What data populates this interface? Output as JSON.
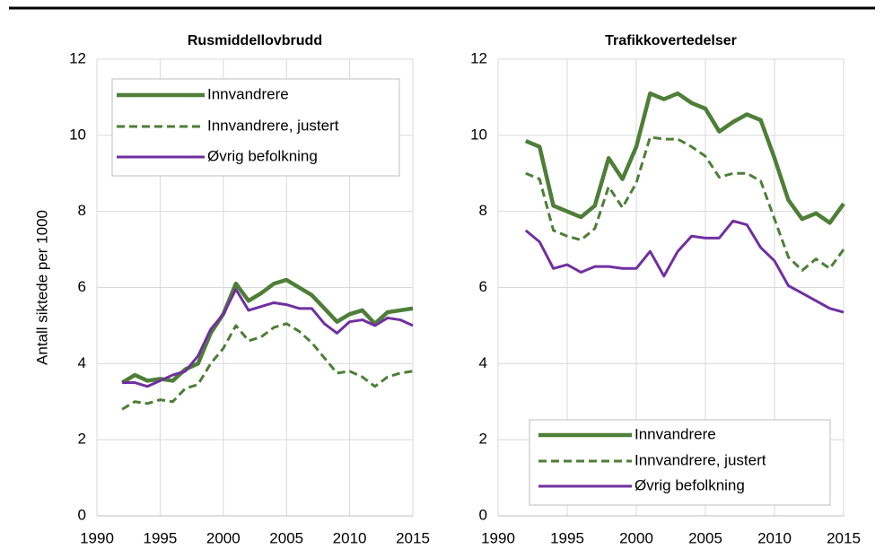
{
  "chart_data": [
    {
      "type": "line",
      "title": "Rusmiddellovbrudd",
      "ylabel": "Antall siktede per 1000",
      "x": [
        1992,
        1993,
        1994,
        1995,
        1996,
        1997,
        1998,
        1999,
        2000,
        2001,
        2002,
        2003,
        2004,
        2005,
        2006,
        2007,
        2008,
        2009,
        2010,
        2011,
        2012,
        2013,
        2014,
        2015
      ],
      "xlim": [
        1990,
        2015
      ],
      "xticks": [
        1990,
        1995,
        2000,
        2005,
        2010,
        2015
      ],
      "ylim": [
        0,
        12
      ],
      "yticks": [
        0,
        2,
        4,
        6,
        8,
        10,
        12
      ],
      "grid": true,
      "legend": "upper left",
      "series": [
        {
          "name": "Innvandrere",
          "color": "#4e7e38",
          "line_style": "solid",
          "values": [
            3.5,
            3.7,
            3.55,
            3.6,
            3.55,
            3.85,
            4.0,
            4.8,
            5.3,
            6.1,
            5.65,
            5.85,
            6.1,
            6.2,
            6.0,
            5.8,
            5.45,
            5.1,
            5.3,
            5.4,
            5.05,
            5.35,
            5.4,
            5.45
          ]
        },
        {
          "name": "Innvandrere, justert",
          "color": "#4e7e38",
          "line_style": "dashed",
          "values": [
            2.8,
            3.0,
            2.95,
            3.05,
            3.0,
            3.35,
            3.45,
            4.0,
            4.4,
            5.0,
            4.6,
            4.7,
            4.95,
            5.05,
            4.85,
            4.55,
            4.15,
            3.75,
            3.8,
            3.65,
            3.4,
            3.65,
            3.75,
            3.8
          ]
        },
        {
          "name": "Øvrig befolkning",
          "color": "#7030a0",
          "line_style": "solid",
          "values": [
            3.5,
            3.5,
            3.4,
            3.55,
            3.7,
            3.8,
            4.2,
            4.9,
            5.3,
            5.95,
            5.4,
            5.5,
            5.6,
            5.55,
            5.45,
            5.45,
            5.05,
            4.8,
            5.1,
            5.15,
            5.0,
            5.2,
            5.15,
            5.0
          ]
        }
      ]
    },
    {
      "type": "line",
      "title": "Trafikkovertedelser",
      "x": [
        1992,
        1993,
        1994,
        1995,
        1996,
        1997,
        1998,
        1999,
        2000,
        2001,
        2002,
        2003,
        2004,
        2005,
        2006,
        2007,
        2008,
        2009,
        2010,
        2011,
        2012,
        2013,
        2014,
        2015
      ],
      "xlim": [
        1990,
        2015
      ],
      "xticks": [
        1990,
        1995,
        2000,
        2005,
        2010,
        2015
      ],
      "ylim": [
        0,
        12
      ],
      "yticks": [
        0,
        2,
        4,
        6,
        8,
        10,
        12
      ],
      "grid": true,
      "legend": "lower center",
      "series": [
        {
          "name": "Innvandrere",
          "color": "#4e7e38",
          "line_style": "solid",
          "values": [
            9.85,
            9.7,
            8.15,
            8.0,
            7.85,
            8.15,
            9.4,
            8.85,
            9.7,
            11.1,
            10.95,
            11.1,
            10.85,
            10.7,
            10.1,
            10.35,
            10.55,
            10.4,
            9.4,
            8.3,
            7.8,
            7.95,
            7.7,
            8.2
          ]
        },
        {
          "name": "Innvandrere, justert",
          "color": "#4e7e38",
          "line_style": "dashed",
          "values": [
            9.0,
            8.85,
            7.5,
            7.35,
            7.25,
            7.55,
            8.65,
            8.1,
            8.75,
            9.95,
            9.9,
            9.9,
            9.7,
            9.45,
            8.9,
            9.0,
            9.0,
            8.8,
            7.8,
            6.8,
            6.45,
            6.75,
            6.5,
            7.0
          ]
        },
        {
          "name": "Øvrig befolkning",
          "color": "#7030a0",
          "line_style": "solid",
          "values": [
            7.5,
            7.2,
            6.5,
            6.6,
            6.4,
            6.55,
            6.55,
            6.5,
            6.5,
            6.95,
            6.3,
            6.95,
            7.35,
            7.3,
            7.3,
            7.75,
            7.65,
            7.05,
            6.7,
            6.05,
            5.85,
            5.65,
            5.45,
            5.35
          ]
        }
      ]
    }
  ]
}
